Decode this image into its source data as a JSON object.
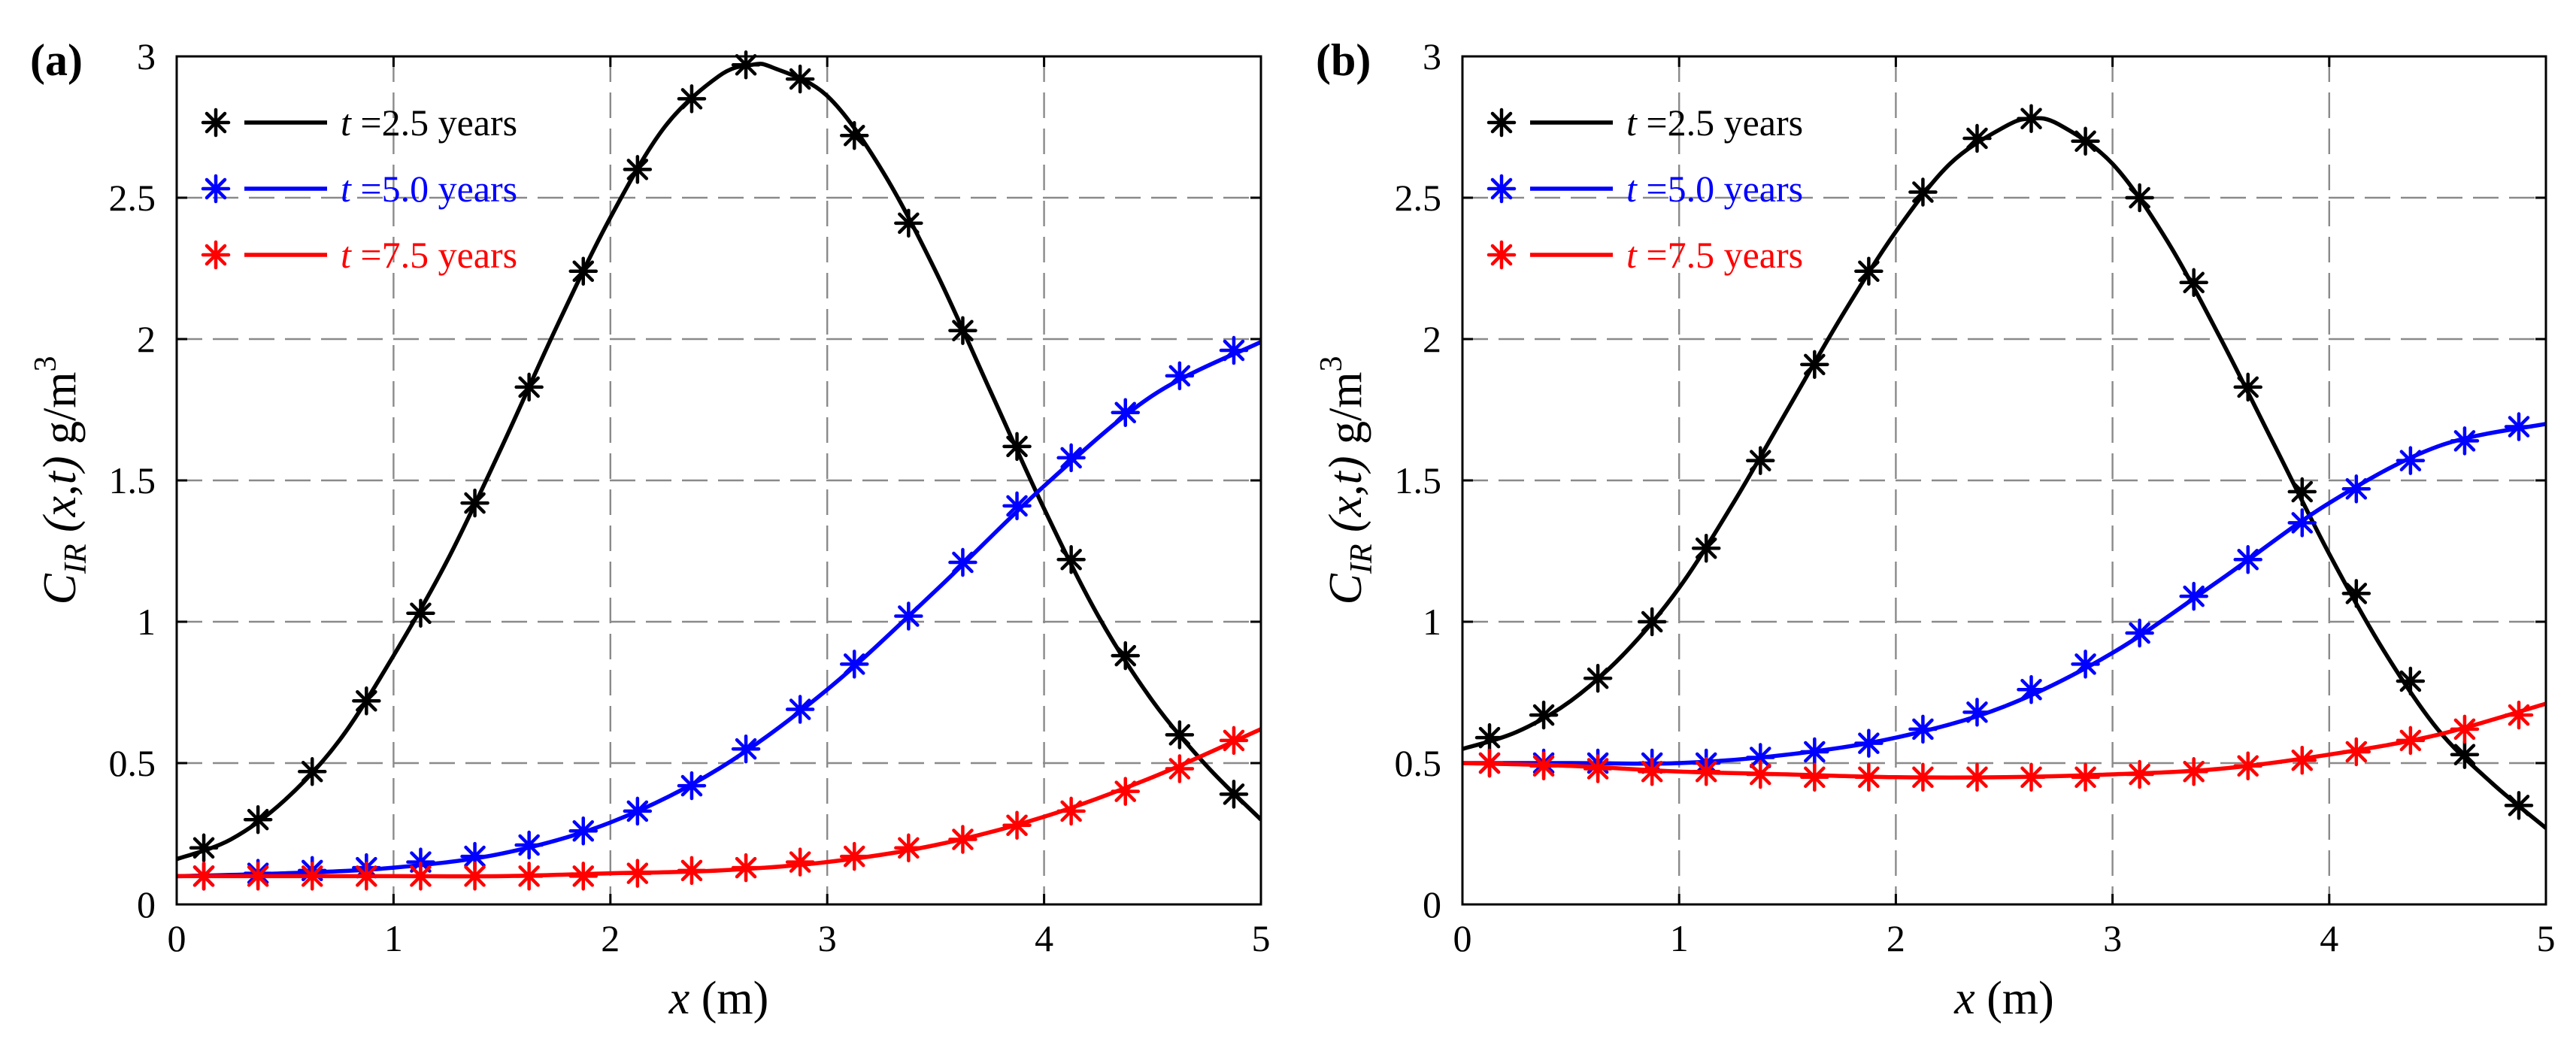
{
  "chart_data": [
    {
      "type": "line",
      "panel_label": "(a)",
      "xlabel": "x (m)",
      "xlabel_var": "x",
      "xlabel_unit": " (m)",
      "ylabel": "C_IR (x,t) g/m^3",
      "ylabel_var": "C",
      "ylabel_sub": "IR",
      "ylabel_args": " (x,t)",
      "ylabel_unit": " g/m",
      "ylabel_sup": "3",
      "xlim": [
        0,
        5
      ],
      "ylim": [
        0,
        3
      ],
      "xticks": [
        "0",
        "1",
        "2",
        "3",
        "4",
        "5"
      ],
      "yticks": [
        "0",
        "0.5",
        "1",
        "1.5",
        "2",
        "2.5",
        "3"
      ],
      "grid": true,
      "legend_position": "top-left",
      "marker_x": [
        0.125,
        0.375,
        0.625,
        0.875,
        1.125,
        1.375,
        1.625,
        1.875,
        2.125,
        2.375,
        2.625,
        2.875,
        3.125,
        3.375,
        3.625,
        3.875,
        4.125,
        4.375,
        4.625,
        4.875
      ],
      "series": [
        {
          "name": "t =2.5 years",
          "label_var": "t",
          "label_rest": " =2.5 years",
          "color": "#000000",
          "curve_x": [
            0,
            0.25,
            0.5,
            0.75,
            1.0,
            1.25,
            1.5,
            1.75,
            2.0,
            2.25,
            2.5,
            2.65,
            2.75,
            3.0,
            3.25,
            3.5,
            3.75,
            4.0,
            4.25,
            4.5,
            4.75,
            5.0
          ],
          "curve_y": [
            0.16,
            0.23,
            0.37,
            0.58,
            0.88,
            1.22,
            1.62,
            2.04,
            2.43,
            2.75,
            2.93,
            2.97,
            2.96,
            2.86,
            2.6,
            2.24,
            1.82,
            1.4,
            1.02,
            0.72,
            0.49,
            0.3
          ],
          "marker_y": [
            0.2,
            0.3,
            0.47,
            0.72,
            1.03,
            1.42,
            1.83,
            2.24,
            2.6,
            2.85,
            2.97,
            2.92,
            2.72,
            2.41,
            2.03,
            1.62,
            1.22,
            0.88,
            0.6,
            0.39
          ]
        },
        {
          "name": "t =5.0 years",
          "label_var": "t",
          "label_rest": " =5.0 years",
          "color": "#0000ff",
          "curve_x": [
            0,
            0.5,
            1.0,
            1.5,
            2.0,
            2.5,
            3.0,
            3.5,
            4.0,
            4.5,
            5.0
          ],
          "curve_y": [
            0.1,
            0.11,
            0.13,
            0.18,
            0.29,
            0.48,
            0.76,
            1.11,
            1.48,
            1.8,
            1.99
          ],
          "marker_y": [
            0.1,
            0.11,
            0.12,
            0.13,
            0.15,
            0.17,
            0.21,
            0.26,
            0.33,
            0.42,
            0.55,
            0.69,
            0.85,
            1.02,
            1.21,
            1.41,
            1.58,
            1.74,
            1.87,
            1.96
          ]
        },
        {
          "name": "t =7.5 years",
          "label_var": "t",
          "label_rest": " =7.5 years",
          "color": "#ff0000",
          "curve_x": [
            0,
            0.5,
            1.0,
            1.5,
            2.0,
            2.5,
            3.0,
            3.5,
            4.0,
            4.5,
            5.0
          ],
          "curve_y": [
            0.1,
            0.1,
            0.1,
            0.1,
            0.11,
            0.12,
            0.15,
            0.21,
            0.31,
            0.45,
            0.62
          ],
          "marker_y": [
            0.1,
            0.1,
            0.1,
            0.1,
            0.1,
            0.1,
            0.1,
            0.1,
            0.11,
            0.12,
            0.13,
            0.15,
            0.17,
            0.2,
            0.23,
            0.28,
            0.33,
            0.4,
            0.48,
            0.58
          ]
        }
      ]
    },
    {
      "type": "line",
      "panel_label": "(b)",
      "xlabel": "x (m)",
      "xlabel_var": "x",
      "xlabel_unit": " (m)",
      "ylabel": "C_IR (x,t) g/m^3",
      "ylabel_var": "C",
      "ylabel_sub": "IR",
      "ylabel_args": " (x,t)",
      "ylabel_unit": " g/m",
      "ylabel_sup": "3",
      "xlim": [
        0,
        5
      ],
      "ylim": [
        0,
        3
      ],
      "xticks": [
        "0",
        "1",
        "2",
        "3",
        "4",
        "5"
      ],
      "yticks": [
        "0",
        "0.5",
        "1",
        "1.5",
        "2",
        "2.5",
        "3"
      ],
      "grid": true,
      "legend_position": "top-left",
      "marker_x": [
        0.125,
        0.375,
        0.625,
        0.875,
        1.125,
        1.375,
        1.625,
        1.875,
        2.125,
        2.375,
        2.625,
        2.875,
        3.125,
        3.375,
        3.625,
        3.875,
        4.125,
        4.375,
        4.625,
        4.875
      ],
      "series": [
        {
          "name": "t =2.5 years",
          "label_var": "t",
          "label_rest": " =2.5 years",
          "color": "#000000",
          "curve_x": [
            0,
            0.25,
            0.5,
            0.75,
            1.0,
            1.25,
            1.5,
            1.75,
            2.0,
            2.25,
            2.5,
            2.62,
            2.75,
            3.0,
            3.25,
            3.5,
            3.75,
            4.0,
            4.25,
            4.5,
            4.75,
            5.0
          ],
          "curve_y": [
            0.55,
            0.61,
            0.72,
            0.89,
            1.12,
            1.42,
            1.75,
            2.08,
            2.38,
            2.62,
            2.75,
            2.78,
            2.76,
            2.62,
            2.35,
            2.0,
            1.62,
            1.24,
            0.9,
            0.62,
            0.43,
            0.27
          ],
          "marker_y": [
            0.59,
            0.67,
            0.8,
            1.0,
            1.26,
            1.57,
            1.91,
            2.24,
            2.52,
            2.71,
            2.78,
            2.7,
            2.5,
            2.2,
            1.83,
            1.46,
            1.1,
            0.79,
            0.53,
            0.35
          ]
        },
        {
          "name": "t =5.0 years",
          "label_var": "t",
          "label_rest": " =5.0 years",
          "color": "#0000ff",
          "curve_x": [
            0,
            0.5,
            1.0,
            1.5,
            2.0,
            2.5,
            3.0,
            3.5,
            4.0,
            4.5,
            5.0
          ],
          "curve_y": [
            0.5,
            0.5,
            0.5,
            0.53,
            0.59,
            0.7,
            0.89,
            1.15,
            1.42,
            1.62,
            1.7
          ],
          "marker_y": [
            0.5,
            0.5,
            0.5,
            0.5,
            0.5,
            0.52,
            0.54,
            0.57,
            0.62,
            0.68,
            0.76,
            0.85,
            0.96,
            1.09,
            1.22,
            1.35,
            1.47,
            1.57,
            1.64,
            1.69
          ]
        },
        {
          "name": "t =7.5 years",
          "label_var": "t",
          "label_rest": " =7.5 years",
          "color": "#ff0000",
          "curve_x": [
            0,
            0.5,
            1.0,
            1.5,
            2.0,
            2.5,
            3.0,
            3.5,
            4.0,
            4.5,
            5.0
          ],
          "curve_y": [
            0.5,
            0.49,
            0.47,
            0.46,
            0.45,
            0.45,
            0.46,
            0.48,
            0.53,
            0.6,
            0.71
          ],
          "marker_y": [
            0.5,
            0.49,
            0.48,
            0.47,
            0.47,
            0.46,
            0.45,
            0.45,
            0.45,
            0.45,
            0.45,
            0.45,
            0.46,
            0.47,
            0.49,
            0.51,
            0.54,
            0.58,
            0.62,
            0.67
          ]
        }
      ]
    }
  ]
}
